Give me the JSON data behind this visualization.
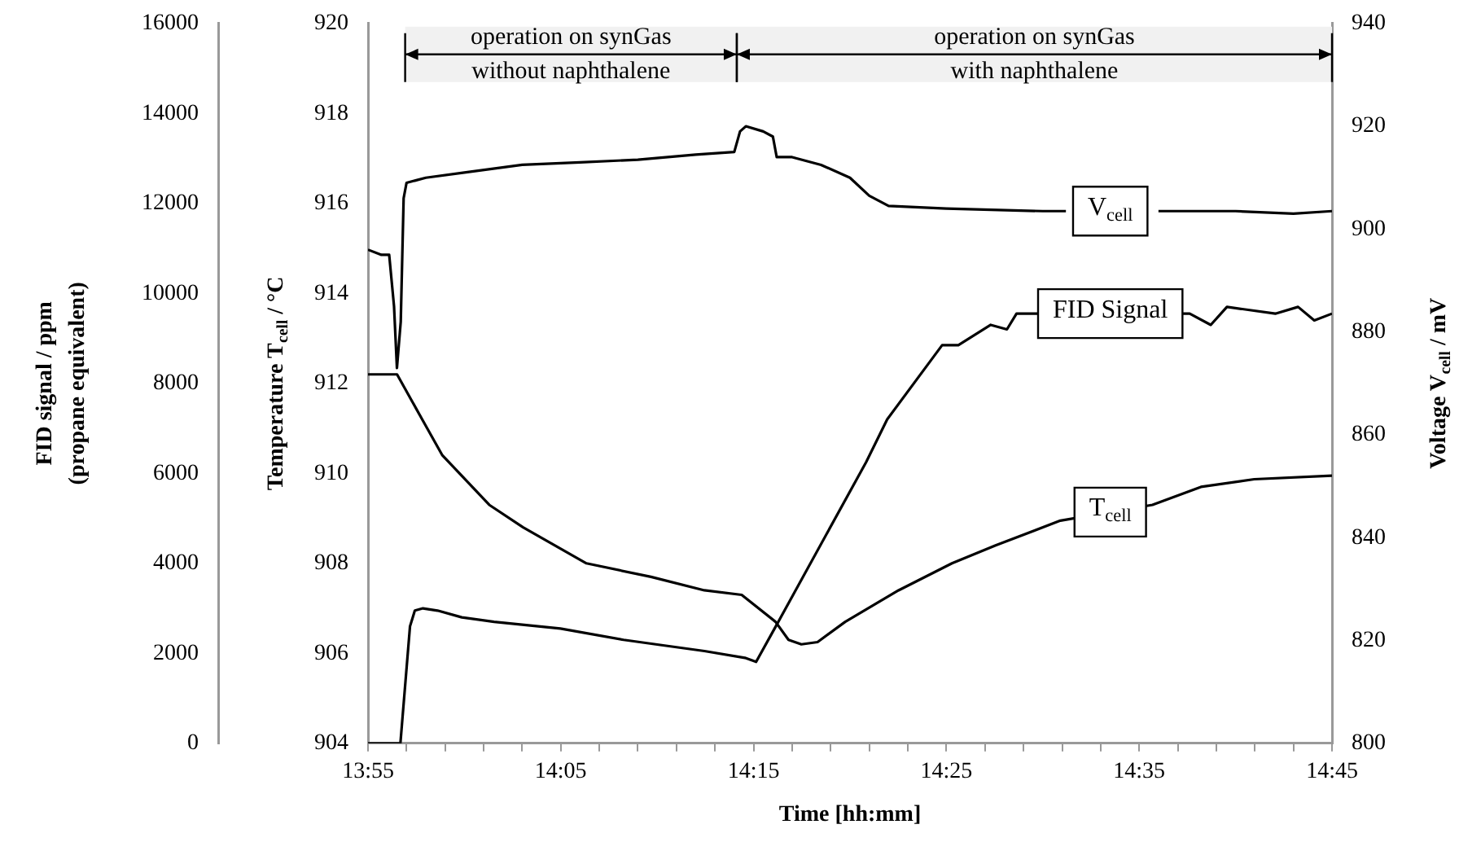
{
  "chart_data": {
    "type": "line",
    "xlabel": "Time [hh:mm]",
    "ylabel": "Temperature T$_{cell}$ / °C",
    "y2label": "Voltage V$_{cell}$ / mV",
    "y3label": "FID signal / ppm\n(propane equivalent)",
    "xlim": [
      13.9167,
      14.75
    ],
    "xticks": [
      {
        "value": 13.9167,
        "label": "13:55"
      },
      {
        "value": 13.95,
        "label": null
      },
      {
        "value": 13.9833,
        "label": null
      },
      {
        "value": 14.0167,
        "label": null
      },
      {
        "value": 14.05,
        "label": null
      },
      {
        "value": 14.0833,
        "label": "14:05"
      },
      {
        "value": 14.1167,
        "label": null
      },
      {
        "value": 14.15,
        "label": null
      },
      {
        "value": 14.1833,
        "label": null
      },
      {
        "value": 14.2167,
        "label": null
      },
      {
        "value": 14.25,
        "label": "14:15"
      },
      {
        "value": 14.2833,
        "label": null
      },
      {
        "value": 14.3167,
        "label": null
      },
      {
        "value": 14.35,
        "label": null
      },
      {
        "value": 14.3833,
        "label": null
      },
      {
        "value": 14.4167,
        "label": "14:25"
      },
      {
        "value": 14.45,
        "label": null
      },
      {
        "value": 14.4833,
        "label": null
      },
      {
        "value": 14.5167,
        "label": null
      },
      {
        "value": 14.55,
        "label": null
      },
      {
        "value": 14.5833,
        "label": "14:35"
      },
      {
        "value": 14.6167,
        "label": null
      },
      {
        "value": 14.65,
        "label": null
      },
      {
        "value": 14.6833,
        "label": null
      },
      {
        "value": 14.7167,
        "label": null
      },
      {
        "value": 14.75,
        "label": "14:45"
      }
    ],
    "ylim": [
      904,
      920
    ],
    "yticks": [
      904,
      906,
      908,
      910,
      912,
      914,
      916,
      918,
      920
    ],
    "y2lim": [
      800,
      940
    ],
    "y2ticks": [
      800,
      820,
      840,
      860,
      880,
      900,
      920,
      940
    ],
    "y3lim": [
      0,
      16000
    ],
    "y3ticks": [
      0,
      2000,
      4000,
      6000,
      8000,
      10000,
      12000,
      14000,
      16000
    ],
    "grid": false,
    "legend": false,
    "marker": "none",
    "line_style": "solid",
    "series": [
      {
        "name": "V$_{cell}$",
        "color": "#000000",
        "axis": "y2",
        "x": [
          13.9167,
          13.9283,
          13.935,
          13.9392,
          13.9417,
          13.945,
          13.9475,
          13.95,
          13.9667,
          14.0,
          14.05,
          14.1,
          14.15,
          14.2,
          14.2333,
          14.2383,
          14.2433,
          14.2583,
          14.2667,
          14.27,
          14.2833,
          14.3083,
          14.3333,
          14.35,
          14.3667,
          14.4167,
          14.5,
          14.52,
          14.5833,
          14.6,
          14.6667,
          14.7167,
          14.75
        ],
        "values": [
          896,
          895,
          895,
          885,
          873,
          882,
          906,
          909,
          910,
          911,
          912.5,
          913,
          913.5,
          914.5,
          915,
          919,
          920,
          919,
          918,
          914,
          914,
          912.5,
          910,
          906.5,
          904.5,
          904,
          903.5,
          903.5,
          null,
          903.5,
          903.5,
          903,
          903.5
        ]
      },
      {
        "name": "FID Signal",
        "color": "#000000",
        "axis": "y3",
        "x": [
          13.9167,
          13.9362,
          13.9447,
          13.953,
          13.9572,
          13.9642,
          13.9768,
          13.9978,
          14.0257,
          14.083,
          14.1377,
          14.1655,
          14.2075,
          14.2425,
          14.2522,
          14.2703,
          14.3473,
          14.3655,
          14.413,
          14.427,
          14.455,
          14.469,
          14.4773,
          14.483,
          14.627,
          14.6452,
          14.6592,
          14.701,
          14.7207,
          14.7347,
          14.75
        ],
        "values": [
          0,
          0,
          0,
          2600,
          2950,
          3000,
          2950,
          2800,
          2700,
          2550,
          2300,
          2200,
          2050,
          1900,
          1810,
          2650,
          6250,
          7200,
          8850,
          8850,
          9300,
          9200,
          9550,
          9550,
          9550,
          9300,
          9700,
          9550,
          9700,
          9400,
          9550
        ]
      },
      {
        "name": "T$_{cell}$",
        "color": "#000000",
        "x": [
          13.9167,
          13.9418,
          13.9657,
          13.981,
          14.0215,
          14.0508,
          14.1055,
          14.1613,
          14.2075,
          14.2397,
          14.269,
          14.2802,
          14.2913,
          14.3053,
          14.3292,
          14.3753,
          14.4215,
          14.4592,
          14.5152,
          14.5948,
          14.6367,
          14.6828,
          14.75
        ],
        "values": [
          912.2,
          912.2,
          911.1,
          910.4,
          909.3,
          908.8,
          908.0,
          907.7,
          907.4,
          907.3,
          906.7,
          906.3,
          906.2,
          906.25,
          906.7,
          907.4,
          908.0,
          908.4,
          908.95,
          909.3,
          909.7,
          909.87,
          909.95
        ]
      }
    ],
    "bands": [
      {
        "axis": "x",
        "from": 13.9488,
        "to": 14.2355,
        "label": "operation on synGas\nwithout naphthalene"
      },
      {
        "axis": "x",
        "from": 14.2355,
        "to": 14.75,
        "label": "operation on synGas\nwith naphthalene"
      }
    ]
  }
}
